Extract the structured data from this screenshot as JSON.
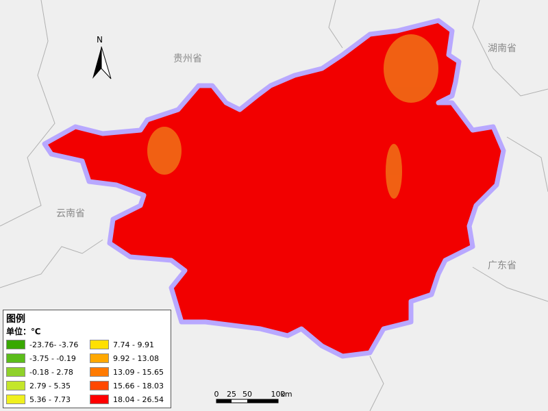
{
  "map": {
    "provinces": [
      {
        "label": "贵州省"
      },
      {
        "label": "湖南省"
      },
      {
        "label": "云南省"
      },
      {
        "label": "广东省"
      }
    ],
    "north": "N",
    "legend": {
      "title": "图例",
      "unit": "单位：℃",
      "items": [
        {
          "label": "-23.76- -3.76",
          "color": "#38a800"
        },
        {
          "label": "-3.75 - -0.19",
          "color": "#5bbd1a"
        },
        {
          "label": "-0.18 - 2.78",
          "color": "#8fd12a"
        },
        {
          "label": "2.79 - 5.35",
          "color": "#c4e62a"
        },
        {
          "label": "5.36 - 7.73",
          "color": "#f0f01e"
        },
        {
          "label": "7.74 - 9.91",
          "color": "#ffe000"
        },
        {
          "label": "9.92 - 13.08",
          "color": "#ffa800"
        },
        {
          "label": "13.09 - 15.65",
          "color": "#ff7a00"
        },
        {
          "label": "15.66 - 18.03",
          "color": "#ff4800"
        },
        {
          "label": "18.04 - 26.54",
          "color": "#ff0000"
        }
      ]
    },
    "scale_bar": {
      "ticks": [
        "0",
        "25",
        "50",
        "100"
      ],
      "unit": "km"
    }
  }
}
